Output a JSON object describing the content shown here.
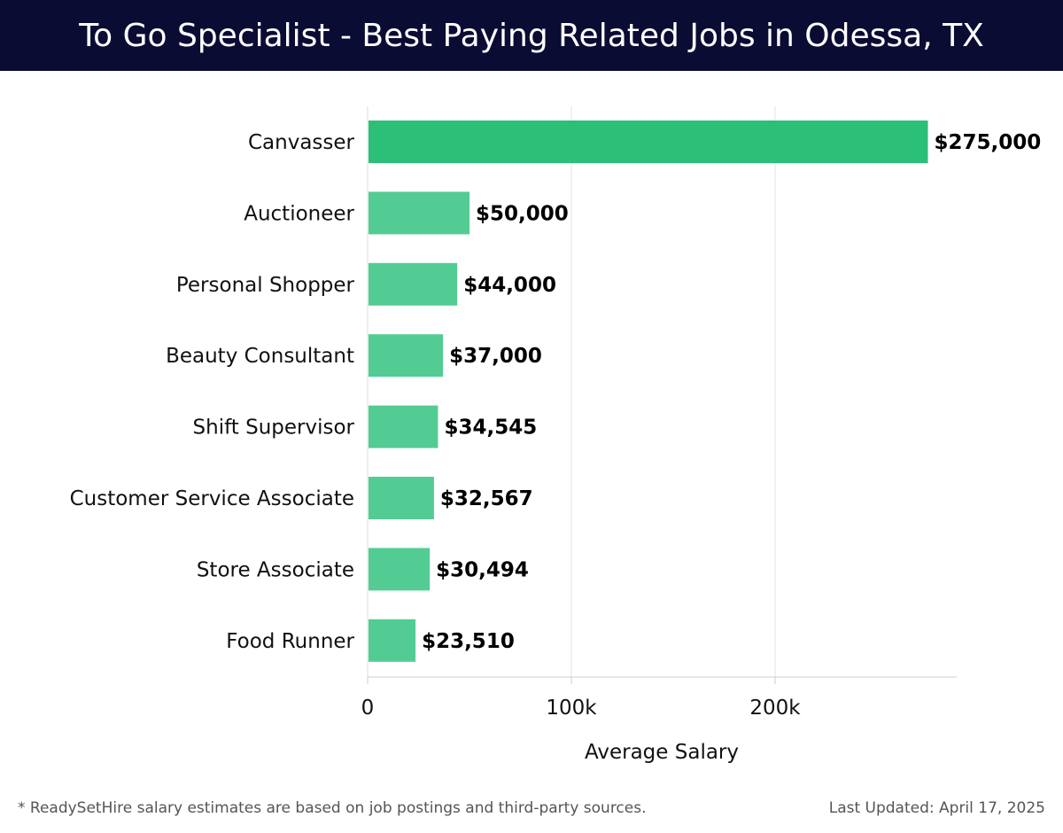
{
  "header": {
    "title": "To Go Specialist - Best Paying Related Jobs in Odessa, TX"
  },
  "colors": {
    "header_bg": "#0b0c33",
    "bar_top": "#2bbf78",
    "bar": "#52cc93",
    "text": "#111111"
  },
  "chart_data": {
    "type": "bar",
    "orientation": "horizontal",
    "title": "",
    "xlabel": "Average Salary",
    "ylabel": "",
    "xlim": [
      0,
      290000
    ],
    "xticks": [
      0,
      100000,
      200000
    ],
    "xtick_labels": [
      "0",
      "100k",
      "200k"
    ],
    "grid": true,
    "categories": [
      "Canvasser",
      "Auctioneer",
      "Personal Shopper",
      "Beauty Consultant",
      "Shift Supervisor",
      "Customer Service Associate",
      "Store Associate",
      "Food Runner"
    ],
    "values": [
      275000,
      50000,
      44000,
      37000,
      34545,
      32567,
      30494,
      23510
    ],
    "value_labels": [
      "$275,000",
      "$50,000",
      "$44,000",
      "$37,000",
      "$34,545",
      "$32,567",
      "$30,494",
      "$23,510"
    ]
  },
  "footer": {
    "note": "* ReadySetHire salary estimates are based on job postings and third-party sources.",
    "updated": "Last Updated: April 17, 2025"
  }
}
